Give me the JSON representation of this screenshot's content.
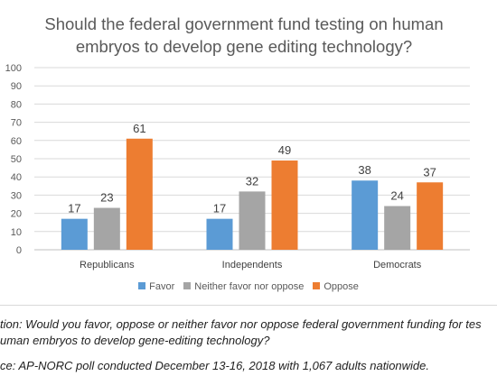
{
  "chart_data": {
    "type": "bar",
    "title": "Should the federal government fund testing on human embryos to develop gene editing technology?",
    "categories": [
      "Republicans",
      "Independents",
      "Democrats"
    ],
    "series": [
      {
        "name": "Favor",
        "values": [
          17,
          17,
          38
        ],
        "color": "#5b9bd5"
      },
      {
        "name": "Neither favor nor oppose",
        "values": [
          23,
          32,
          24
        ],
        "color": "#a5a5a5"
      },
      {
        "name": "Oppose",
        "values": [
          61,
          49,
          37
        ],
        "color": "#ed7d31"
      }
    ],
    "ylim": [
      0,
      100
    ],
    "yticks": [
      0,
      10,
      20,
      30,
      40,
      50,
      60,
      70,
      80,
      90,
      100
    ],
    "grid": true,
    "legend_position": "bottom"
  },
  "notes": {
    "question_line1": "tion: Would you favor, oppose or neither favor nor oppose federal government funding for tes",
    "question_line2": "uman embryos to develop gene-editing technology?",
    "source": "ce: AP-NORC poll conducted December 13-16, 2018 with 1,067 adults nationwide."
  }
}
